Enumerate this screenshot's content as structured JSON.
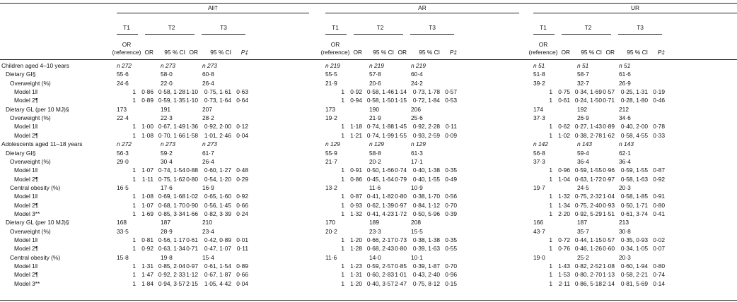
{
  "groups": [
    "All†",
    "AR",
    "UR"
  ],
  "tertiles": [
    "T1",
    "T2",
    "T3"
  ],
  "subheaders": {
    "or_ref_1": "OR",
    "or_ref_2": "(reference)",
    "or": "OR",
    "ci": "95 % CI",
    "p": "P‡"
  },
  "rows": [
    {
      "label": "Children aged 4–10 years",
      "indent": 0,
      "cells": [
        "n 272",
        "n 273",
        "n 273",
        "n 219",
        "n 219",
        "n 219",
        "n 51",
        "n 51",
        "n 51"
      ],
      "type": "n"
    },
    {
      "label": "Dietary GI§",
      "indent": 1,
      "cells": [
        "55·6",
        "58·0",
        "60·8",
        "55·5",
        "57·8",
        "60·4",
        "51·8",
        "58·7",
        "61·6"
      ],
      "type": "mean"
    },
    {
      "label": "Overweight (%)",
      "indent": 2,
      "cells": [
        "24·6",
        "22·0",
        "26·4",
        "21·9",
        "20·6",
        "24·2",
        "39·2",
        "32·7",
        "26·9"
      ],
      "type": "mean"
    },
    {
      "label": "Model 1‖",
      "indent": 3,
      "cells": [
        "1",
        "0·86",
        "0·58, 1·28",
        "1·10",
        "0·75, 1·61",
        "0·63",
        "1",
        "0·92",
        "0·58, 1·46",
        "1·14",
        "0·73, 1·78",
        "0·57",
        "1",
        "0·75",
        "0·34, 1·69",
        "0·57",
        "0·25, 1·31",
        "0·19"
      ],
      "type": "model"
    },
    {
      "label": "Model 2¶",
      "indent": 3,
      "cells": [
        "1",
        "0·89",
        "0·59, 1·35",
        "1·10",
        "0·73, 1·64",
        "0·64",
        "1",
        "0·94",
        "0·58, 1·50",
        "1·15",
        "0·72, 1·84",
        "0·53",
        "1",
        "0·61",
        "0·24, 1·50",
        "0·71",
        "0·28, 1·80",
        "0·46"
      ],
      "type": "model"
    },
    {
      "label": "Dietary GL (per 10 MJ)§",
      "indent": 1,
      "cells": [
        "173",
        "191",
        "207",
        "173",
        "190",
        "206",
        "174",
        "192",
        "212"
      ],
      "type": "mean"
    },
    {
      "label": "Overweight (%)",
      "indent": 2,
      "cells": [
        "22·4",
        "22·3",
        "28·2",
        "19·2",
        "21·9",
        "25·6",
        "37·3",
        "26·9",
        "34·6"
      ],
      "type": "mean"
    },
    {
      "label": "Model 1‖",
      "indent": 3,
      "cells": [
        "1",
        "1·00",
        "0·67, 1·49",
        "1·36",
        "0·92, 2·00",
        "0·12",
        "1",
        "1·18",
        "0·74, 1·88",
        "1·45",
        "0·92, 2·28",
        "0·11",
        "1",
        "0·62",
        "0·27, 1·43",
        "0·89",
        "0·40, 2·00",
        "0·78"
      ],
      "type": "model"
    },
    {
      "label": "Model 2¶",
      "indent": 3,
      "cells": [
        "1",
        "1·08",
        "0·70, 1·66",
        "1·58",
        "1·01, 2·46",
        "0·04",
        "1",
        "1·21",
        "0·74, 1·99",
        "1·55",
        "0·93, 2·59",
        "0·09",
        "1",
        "1·02",
        "0·38, 2·78",
        "1·62",
        "0·58, 4·55",
        "0·33"
      ],
      "type": "model"
    },
    {
      "label": "Adolescents aged 11–18 years",
      "indent": 0,
      "cells": [
        "n 272",
        "n 273",
        "n 273",
        "n 129",
        "n 129",
        "n 129",
        "n 142",
        "n 143",
        "n 143"
      ],
      "type": "n"
    },
    {
      "label": "Dietary GI§",
      "indent": 1,
      "cells": [
        "56·3",
        "59·2",
        "61·7",
        "55·9",
        "58·8",
        "61·3",
        "56·8",
        "59·4",
        "62·1"
      ],
      "type": "mean"
    },
    {
      "label": "Overweight (%)",
      "indent": 2,
      "cells": [
        "29·0",
        "30·4",
        "26·4",
        "21·7",
        "20·2",
        "17·1",
        "37·3",
        "36·4",
        "36·4"
      ],
      "type": "mean"
    },
    {
      "label": "Model 1‖",
      "indent": 3,
      "cells": [
        "1",
        "1·07",
        "0·74, 1·54",
        "0·88",
        "0·60, 1·27",
        "0·48",
        "1",
        "0·91",
        "0·50, 1·66",
        "0·74",
        "0·40, 1·38",
        "0·35",
        "1",
        "0·96",
        "0·59, 1·55",
        "0·96",
        "0·59, 1·55",
        "0·87"
      ],
      "type": "model"
    },
    {
      "label": "Model 2¶",
      "indent": 3,
      "cells": [
        "1",
        "1·11",
        "0·75, 1·62",
        "0·80",
        "0·54, 1·20",
        "0·29",
        "1",
        "0·86",
        "0·45, 1·64",
        "0·79",
        "0·40, 1·55",
        "0·49",
        "1",
        "1·04",
        "0·63, 1·72",
        "0·97",
        "0·58, 1·63",
        "0·92"
      ],
      "type": "model"
    },
    {
      "label": "Central obesity (%)",
      "indent": 2,
      "cells": [
        "16·5",
        "17·6",
        "16·9",
        "13·2",
        "11·6",
        "10·9",
        "19·7",
        "24·5",
        "20·3"
      ],
      "type": "mean"
    },
    {
      "label": "Model 1‖",
      "indent": 3,
      "cells": [
        "1",
        "1·08",
        "0·69, 1·68",
        "1·02",
        "0·65, 1·60",
        "0·92",
        "1",
        "0·87",
        "0·41, 1·82",
        "0·80",
        "0·38, 1·70",
        "0·56",
        "1",
        "1·32",
        "0·75, 2·32",
        "1·04",
        "0·58, 1·85",
        "0·91"
      ],
      "type": "model"
    },
    {
      "label": "Model 2¶",
      "indent": 3,
      "cells": [
        "1",
        "1·07",
        "0·68, 1·70",
        "0·90",
        "0·56, 1·45",
        "0·66",
        "1",
        "0·93",
        "0·62, 1·39",
        "0·97",
        "0·84, 1·12",
        "0·70",
        "1",
        "1·34",
        "0·75, 2·40",
        "0·93",
        "0·50, 1·71",
        "0·80"
      ],
      "type": "model"
    },
    {
      "label": "Model 3**",
      "indent": 3,
      "cells": [
        "1",
        "1·69",
        "0·85, 3·34",
        "1·66",
        "0·82, 3·39",
        "0·24",
        "1",
        "1·32",
        "0·41, 4·23",
        "1·72",
        "0·50, 5·96",
        "0·39",
        "1",
        "2·20",
        "0·92, 5·29",
        "1·51",
        "0·61, 3·74",
        "0·41"
      ],
      "type": "model"
    },
    {
      "label": "Dietary GL (per 10 MJ)§",
      "indent": 1,
      "cells": [
        "168",
        "187",
        "210",
        "170",
        "189",
        "208",
        "166",
        "187",
        "213"
      ],
      "type": "mean"
    },
    {
      "label": "Overweight (%)",
      "indent": 2,
      "cells": [
        "33·5",
        "28·9",
        "23·4",
        "20·2",
        "23·3",
        "15·5",
        "43·7",
        "35·7",
        "30·8"
      ],
      "type": "mean"
    },
    {
      "label": "Model 1‖",
      "indent": 3,
      "cells": [
        "1",
        "0·81",
        "0·56, 1·17",
        "0·61",
        "0·42, 0·89",
        "0·01",
        "1",
        "1·20",
        "0·66, 2·17",
        "0·73",
        "0·38, 1·38",
        "0·35",
        "1",
        "0·72",
        "0·44, 1·15",
        "0·57",
        "0·35, 0·93",
        "0·02"
      ],
      "type": "model"
    },
    {
      "label": "Model 2¶",
      "indent": 3,
      "cells": [
        "1",
        "0·92",
        "0·63, 1·34",
        "0·71",
        "0·47, 1·07",
        "0·11",
        "1",
        "1·28",
        "0·68, 2·43",
        "0·80",
        "0·39, 1·63",
        "0·55",
        "1",
        "0·76",
        "0·46, 1·26",
        "0·60",
        "0·34, 1·05",
        "0·07"
      ],
      "type": "model"
    },
    {
      "label": "Central obesity (%)",
      "indent": 2,
      "cells": [
        "15·8",
        "19·8",
        "15·4",
        "11·6",
        "14·0",
        "10·1",
        "19·0",
        "25·2",
        "20·3"
      ],
      "type": "mean"
    },
    {
      "label": "Model 1‖",
      "indent": 3,
      "cells": [
        "1",
        "1·31",
        "0·85, 2·04",
        "0·97",
        "0·61, 1·54",
        "0·89",
        "1",
        "1·23",
        "0·59, 2·57",
        "0·85",
        "0·39, 1·87",
        "0·70",
        "1",
        "1·43",
        "0·82, 2·52",
        "1·08",
        "0·60, 1·94",
        "0·80"
      ],
      "type": "model"
    },
    {
      "label": "Model 2¶",
      "indent": 3,
      "cells": [
        "1",
        "1·47",
        "0·92, 2·33",
        "1·12",
        "0·67, 1·87",
        "0·66",
        "1",
        "1·31",
        "0·60, 2·83",
        "1·01",
        "0·43, 2·40",
        "0·96",
        "1",
        "1·53",
        "0·80, 2·70",
        "1·13",
        "0·58, 2·21",
        "0·74"
      ],
      "type": "model"
    },
    {
      "label": "Model 3**",
      "indent": 3,
      "cells": [
        "1",
        "1·84",
        "0·94, 3·57",
        "2·15",
        "1·05, 4·42",
        "0·04",
        "1",
        "1·20",
        "0·40, 3·57",
        "2·47",
        "0·75, 8·12",
        "0·15",
        "1",
        "2·11",
        "0·86, 5·18",
        "2·14",
        "0·81, 5·69",
        "0·14"
      ],
      "type": "model"
    }
  ]
}
